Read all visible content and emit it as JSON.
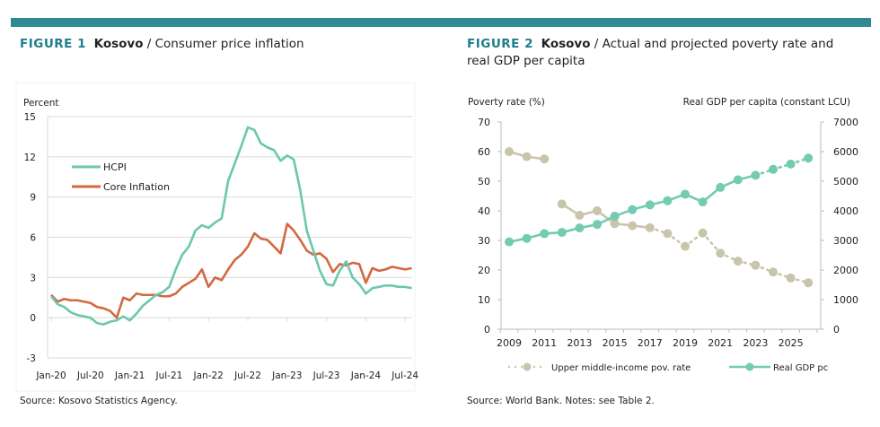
{
  "colors": {
    "accent_bar": "#2f8a91",
    "hcpi": "#6cc7ad",
    "core": "#d2693f",
    "gdp": "#72cbb2",
    "poverty": "#c9c5ab",
    "title": "#1f7e8c"
  },
  "figure1": {
    "label": "FIGURE 1",
    "country": "Kosovo",
    "title_rest": " / Consumer price inflation",
    "source": "Source: Kosovo Statistics Agency."
  },
  "figure2": {
    "label": "FIGURE 2",
    "country": "Kosovo",
    "title_rest": " / Actual and projected poverty rate and",
    "title_line2": "real GDP per capita",
    "source": "Source: World Bank. Notes: see Table 2."
  },
  "chart_data": [
    {
      "type": "line",
      "ylabel": "Percent",
      "ylim": [
        -3,
        15
      ],
      "yticks": [
        "15",
        "12",
        "9",
        "6",
        "3",
        "0",
        "-3"
      ],
      "xtick_labels": [
        "Jan-20",
        "Jul-20",
        "Jan-21",
        "Jul-21",
        "Jan-22",
        "Jul-22",
        "Jan-23",
        "Jul-23",
        "Jan-24",
        "Jul-24"
      ],
      "x_start": "Jan-20",
      "x_end": "Aug-24",
      "frequency": "monthly",
      "grid": true,
      "legend": "upper-left",
      "series": [
        {
          "name": "HCPI",
          "values": [
            1.6,
            1.0,
            0.8,
            0.4,
            0.2,
            0.1,
            0.0,
            -0.4,
            -0.5,
            -0.3,
            -0.2,
            0.1,
            -0.2,
            0.3,
            0.9,
            1.3,
            1.7,
            1.9,
            2.3,
            3.6,
            4.7,
            5.3,
            6.5,
            6.9,
            6.7,
            7.1,
            7.4,
            10.2,
            11.5,
            12.8,
            14.2,
            14.0,
            13.0,
            12.7,
            12.5,
            11.7,
            12.1,
            11.8,
            9.5,
            6.5,
            5.0,
            3.5,
            2.5,
            2.4,
            3.5,
            4.2,
            3.0,
            2.5,
            1.8,
            2.2,
            2.3,
            2.4,
            2.4,
            2.3,
            2.3,
            2.2
          ]
        },
        {
          "name": "Core Inflation",
          "values": [
            1.7,
            1.2,
            1.4,
            1.3,
            1.3,
            1.2,
            1.1,
            0.8,
            0.7,
            0.5,
            0.0,
            1.5,
            1.3,
            1.8,
            1.7,
            1.7,
            1.7,
            1.6,
            1.6,
            1.8,
            2.3,
            2.6,
            2.9,
            3.6,
            2.3,
            3.0,
            2.8,
            3.6,
            4.3,
            4.7,
            5.3,
            6.3,
            5.9,
            5.8,
            5.3,
            4.8,
            7.0,
            6.5,
            5.8,
            5.0,
            4.7,
            4.8,
            4.4,
            3.4,
            4.0,
            3.9,
            4.1,
            4.0,
            2.6,
            3.7,
            3.5,
            3.6,
            3.8,
            3.7,
            3.6,
            3.7
          ]
        }
      ]
    },
    {
      "type": "line",
      "ylabel_left": "Poverty rate (%)",
      "ylabel_right": "Real GDP per capita (constant LCU)",
      "ylim_left": [
        0,
        70
      ],
      "ylim_right": [
        0,
        7000
      ],
      "yticks_left": [
        "70",
        "60",
        "50",
        "40",
        "30",
        "20",
        "10",
        "0"
      ],
      "yticks_right": [
        "7000",
        "6000",
        "5000",
        "4000",
        "3000",
        "2000",
        "1000",
        "0"
      ],
      "xtick_labels": [
        "2009",
        "2011",
        "2013",
        "2015",
        "2017",
        "2019",
        "2021",
        "2023",
        "2025"
      ],
      "x": [
        2009,
        2010,
        2011,
        2012,
        2013,
        2014,
        2015,
        2016,
        2017,
        2018,
        2019,
        2020,
        2021,
        2022,
        2023,
        2024,
        2025,
        2026
      ],
      "grid": false,
      "legend": "bottom",
      "series": [
        {
          "name": "Upper middle-income pov. rate",
          "axis": "left",
          "values": [
            60,
            58.3,
            57.5,
            42.3,
            38.5,
            40,
            35.7,
            35,
            34.3,
            32.3,
            28,
            32.5,
            25.7,
            23,
            21.6,
            19.3,
            17.3,
            15.7
          ],
          "projected_from": 2017,
          "break_after": 2011
        },
        {
          "name": "Real GDP pc",
          "axis": "right",
          "values": [
            2950,
            3070,
            3230,
            3270,
            3420,
            3540,
            3820,
            4040,
            4200,
            4340,
            4560,
            4300,
            4790,
            5050,
            5200,
            5400,
            5580,
            5780
          ],
          "projected_from": 2023
        }
      ]
    }
  ]
}
